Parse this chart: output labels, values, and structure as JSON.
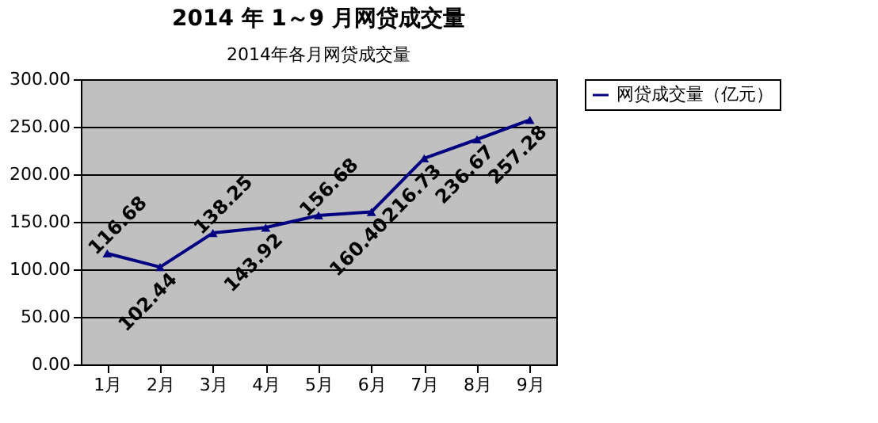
{
  "chart_data": {
    "type": "line",
    "title": "2014 年 1～9 月网贷成交量",
    "subtitle": "2014年各月网贷成交量",
    "categories": [
      "1月",
      "2月",
      "3月",
      "4月",
      "5月",
      "6月",
      "7月",
      "8月",
      "9月"
    ],
    "series": [
      {
        "name": "网贷成交量（亿元）",
        "color": "#000080",
        "values": [
          116.68,
          102.44,
          138.25,
          143.92,
          156.68,
          160.4,
          216.73,
          236.67,
          257.28
        ],
        "value_labels": [
          "116.68",
          "102.44",
          "138.25",
          "143.92",
          "156.68",
          "160.40",
          "216.73",
          "236.67",
          "257.28"
        ]
      }
    ],
    "ylim": [
      0,
      300
    ],
    "yticks": [
      {
        "value": 0,
        "label": "0.00"
      },
      {
        "value": 50,
        "label": "50.00"
      },
      {
        "value": 100,
        "label": "100.00"
      },
      {
        "value": 150,
        "label": "150.00"
      },
      {
        "value": 200,
        "label": "200.00"
      },
      {
        "value": 250,
        "label": "250.00"
      },
      {
        "value": 300,
        "label": "300.00"
      }
    ],
    "grid": "y",
    "legend": "right",
    "marker": "triangle",
    "line_style": "solid"
  }
}
